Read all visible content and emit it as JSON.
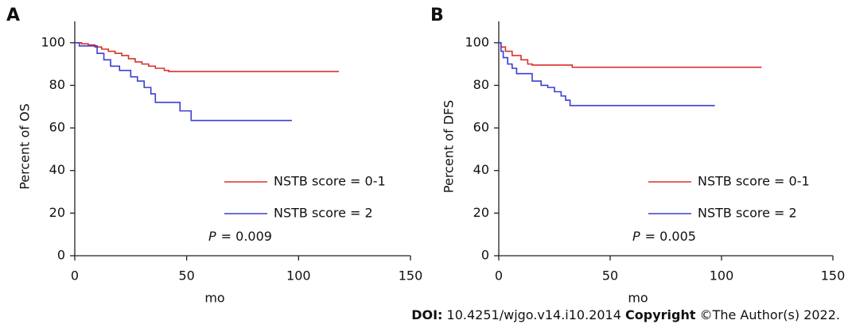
{
  "chart_data": [
    {
      "type": "step",
      "panel_label": "A",
      "ylabel": "Percent of OS",
      "xlabel": "mo",
      "p_symbol": "P",
      "p_text": "= 0.009",
      "xlim": [
        0,
        150
      ],
      "ylim": [
        0,
        110
      ],
      "xticks": [
        0,
        50,
        100,
        150
      ],
      "yticks": [
        0,
        20,
        40,
        60,
        80,
        100
      ],
      "series": [
        {
          "name": "NSTB score = 0-1",
          "color": "#d9302b",
          "x": [
            0,
            3,
            6,
            9,
            12,
            15,
            18,
            21,
            24,
            27,
            30,
            33,
            36,
            40,
            42,
            118
          ],
          "values": [
            100,
            99.5,
            99,
            98,
            97,
            96,
            95,
            94,
            92.5,
            91,
            90,
            89,
            88,
            87,
            86.5,
            86.5
          ]
        },
        {
          "name": "NSTB score = 2",
          "color": "#3b3fd0",
          "x": [
            0,
            2,
            10,
            13,
            16,
            20,
            25,
            28,
            31,
            34,
            36,
            47,
            52,
            97
          ],
          "values": [
            100,
            98.5,
            95,
            92,
            89,
            87,
            84,
            82,
            79,
            76,
            72,
            68,
            63.5,
            63.5
          ]
        }
      ]
    },
    {
      "type": "step",
      "panel_label": "B",
      "ylabel": "Percent of DFS",
      "xlabel": "mo",
      "p_symbol": "P",
      "p_text": "= 0.005",
      "xlim": [
        0,
        150
      ],
      "ylim": [
        0,
        110
      ],
      "xticks": [
        0,
        50,
        100,
        150
      ],
      "yticks": [
        0,
        20,
        40,
        60,
        80,
        100
      ],
      "series": [
        {
          "name": "NSTB score = 0-1",
          "color": "#d9302b",
          "x": [
            0,
            1,
            3,
            6,
            10,
            13,
            15,
            33,
            118
          ],
          "values": [
            100,
            98,
            96,
            94,
            92,
            90,
            89.5,
            88.5,
            88.5
          ]
        },
        {
          "name": "NSTB score = 2",
          "color": "#3b3fd0",
          "x": [
            0,
            1,
            2,
            4,
            6,
            8,
            15,
            19,
            22,
            25,
            28,
            30,
            32,
            97
          ],
          "values": [
            100,
            96,
            93,
            90,
            88,
            85.5,
            82,
            80,
            79,
            77,
            75,
            73,
            70.5,
            70.5
          ]
        }
      ]
    }
  ],
  "footer": {
    "doi_label": "DOI:",
    "doi": "10.4251/wjgo.v14.i10.2014",
    "copyright_label": "Copyright",
    "copyright": "©The Author(s) 2022."
  }
}
